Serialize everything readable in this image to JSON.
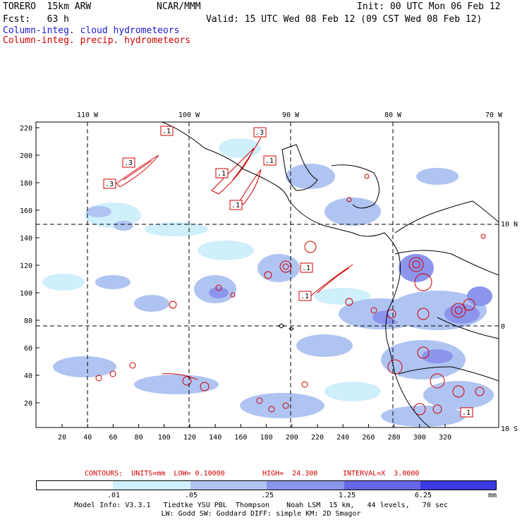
{
  "header": {
    "model": "TORERO  15km ARW",
    "org": "NCAR/MMM",
    "init": "Init: 00 UTC Mon 06 Feb 12",
    "fcst": "Fcst:   63 h",
    "valid": "Valid: 15 UTC Wed 08 Feb 12 (09 CST Wed 08 Feb 12)",
    "legend_cloud": "Column-integ. cloud hydrometeors",
    "legend_precip": "Column-integ. precip. hydrometeors",
    "legend_cloud_color": "#1a1ad0",
    "legend_precip_color": "#d00000"
  },
  "axes": {
    "lon_labels": [
      "110 W",
      "100 W",
      "90 W",
      "80 W",
      "70 W"
    ],
    "lat_labels": [
      "10 N",
      "0",
      "10 S"
    ],
    "y_ticks": [
      "220",
      "200",
      "180",
      "160",
      "140",
      "120",
      "100",
      "80",
      "60",
      "40",
      "20"
    ],
    "x_ticks": [
      "20",
      "40",
      "60",
      "80",
      "100",
      "120",
      "140",
      "160",
      "180",
      "200",
      "220",
      "240",
      "260",
      "280",
      "300",
      "320"
    ]
  },
  "contour_labels": [
    ".1",
    ".3",
    ".3",
    ".1",
    ".3",
    ".1",
    ".1",
    ".1",
    ".1",
    ".1"
  ],
  "contours_info": {
    "units": "CONTOURS:  UNITS=mm  LOW= 0.10000",
    "high": "HIGH=  24.300",
    "interval": "INTERVAL=X  3.0000"
  },
  "colorbar": {
    "ticks": [
      ".01",
      ".05",
      ".25",
      "1.25",
      "6.25"
    ],
    "unit": "mm",
    "colors": [
      "#ffffff",
      "#cfeffa",
      "#b0c4f2",
      "#8c95ec",
      "#6666e6",
      "#3a3ae0",
      "#1414e8"
    ]
  },
  "footer": {
    "line1": "Model Info: V3.3.1   Tiedtke YSU PBL  Thompson    Noah LSM  15 km,   44 levels,   70 sec",
    "line2": "LW: Godd SW: Goddard DIFF: simple KM: 2D Smagor"
  }
}
